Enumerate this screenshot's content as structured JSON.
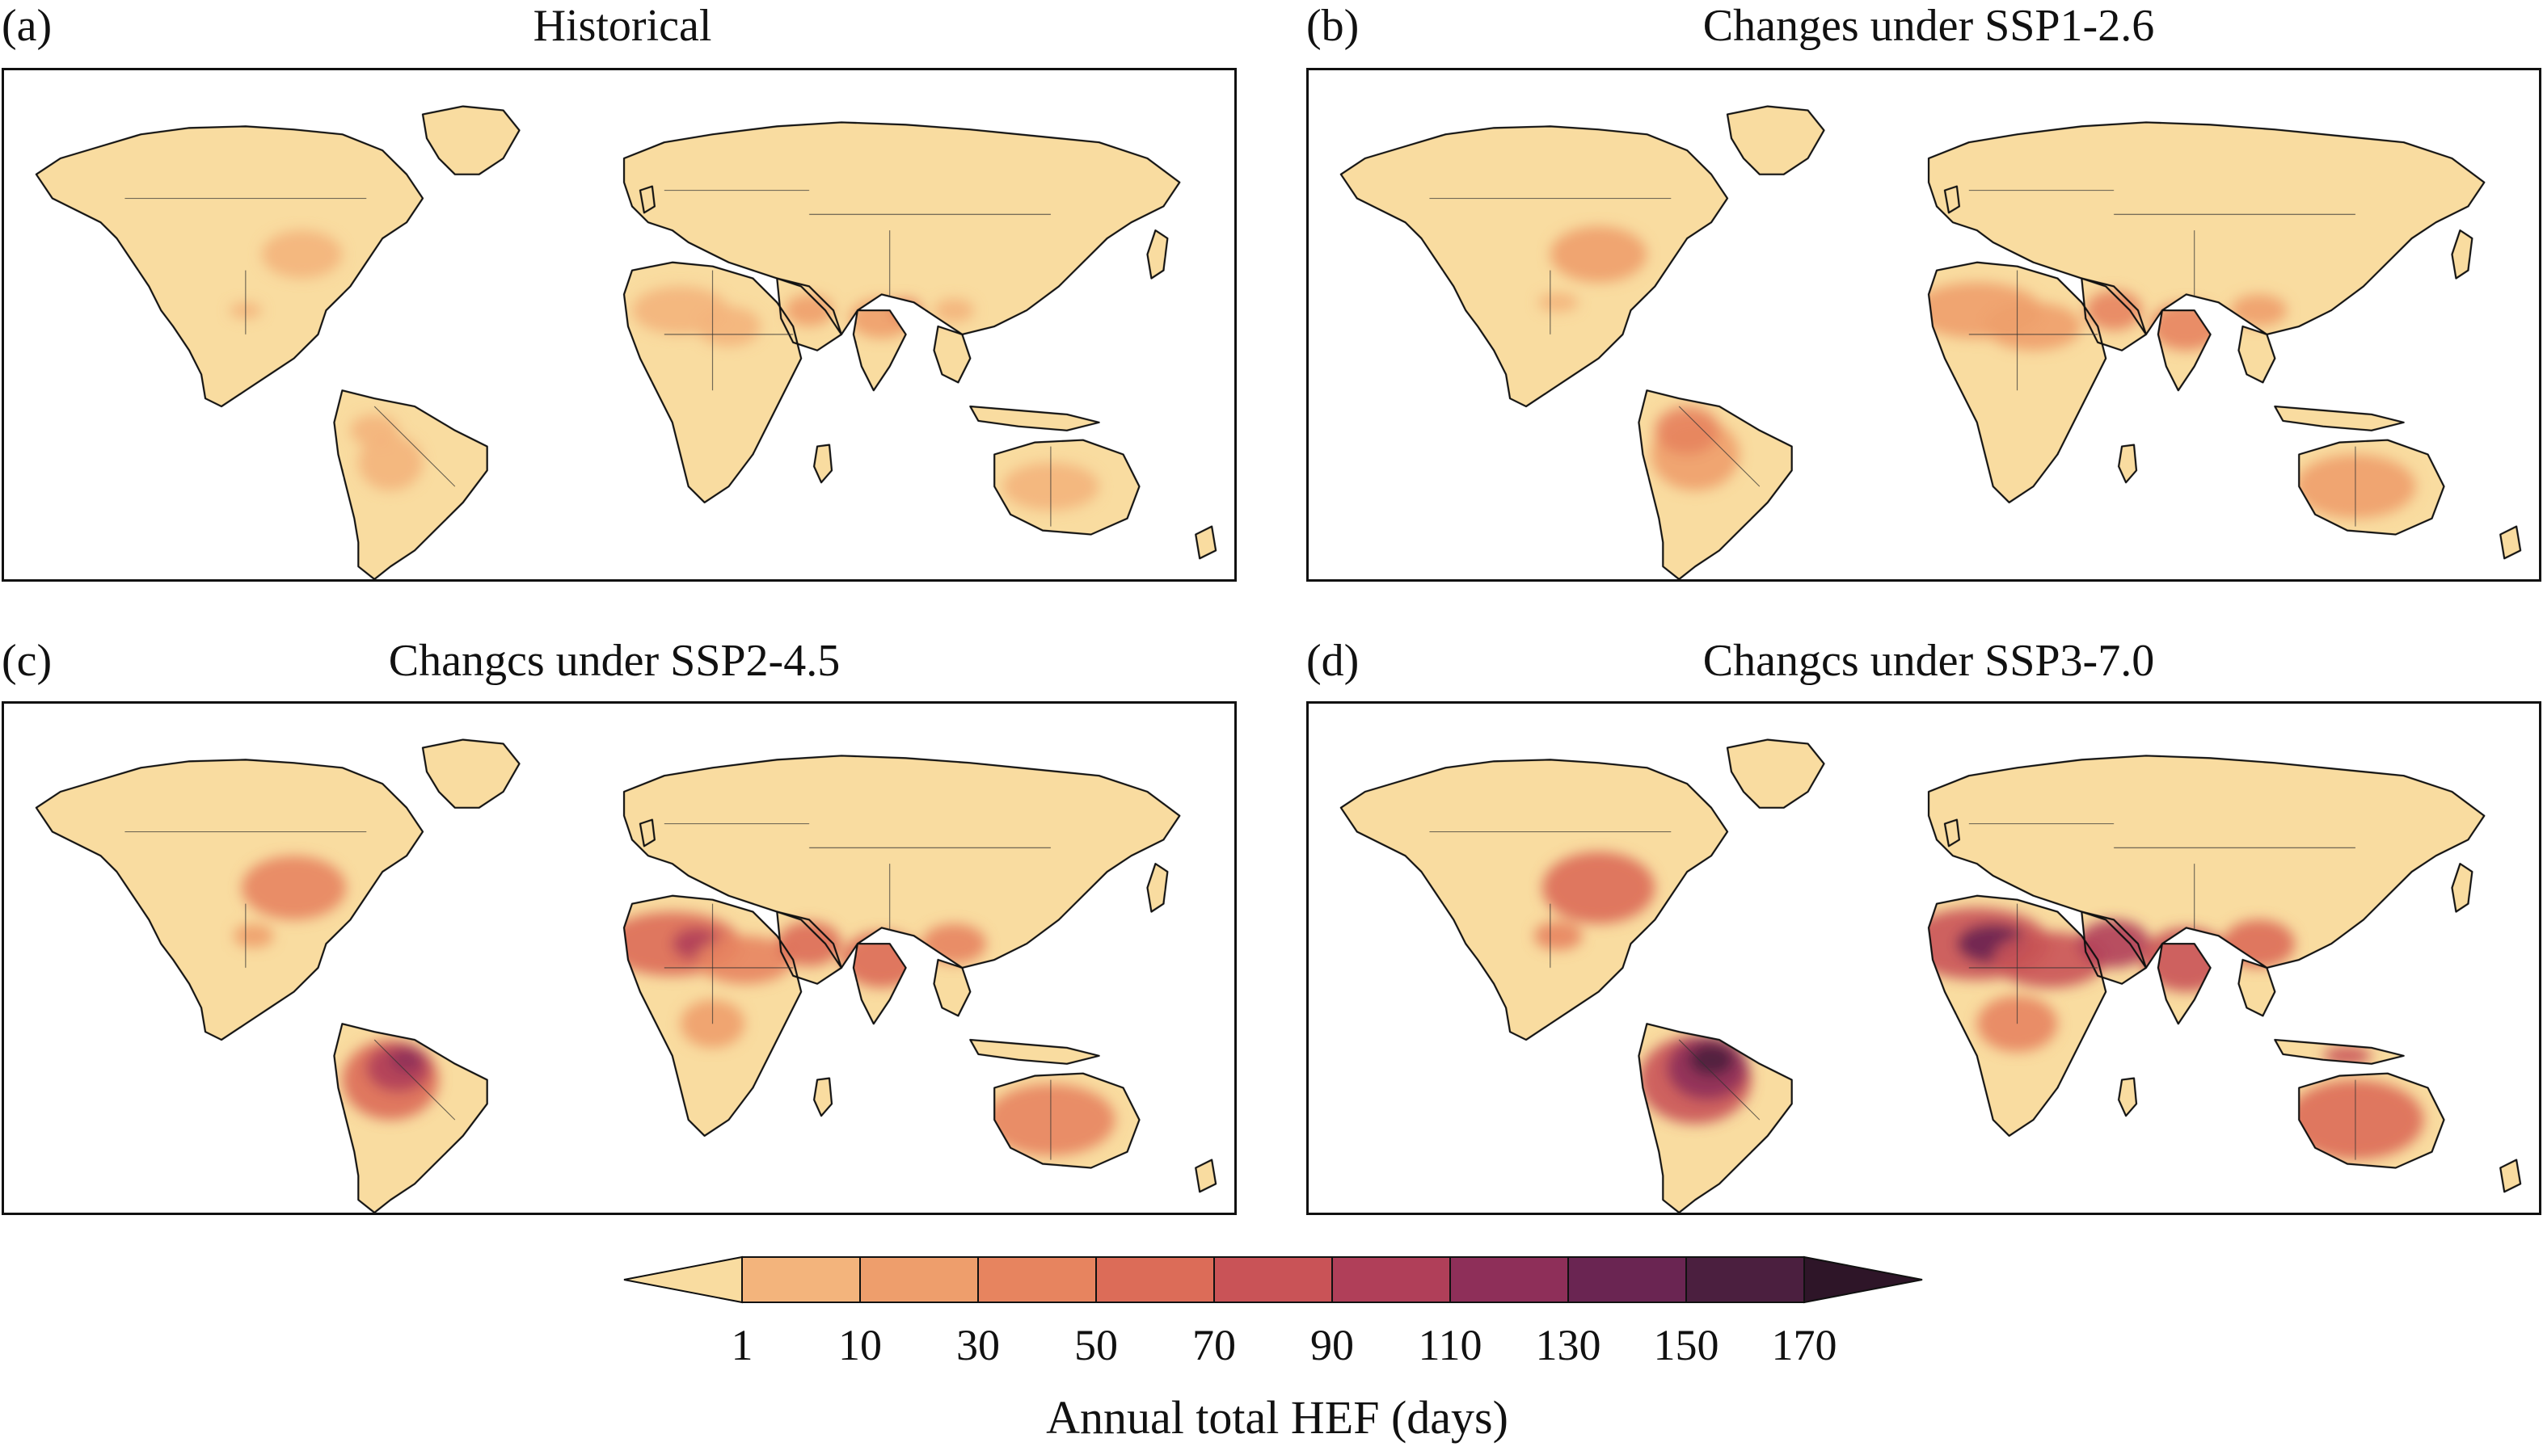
{
  "figure": {
    "panels": [
      {
        "letter": "(a)",
        "title": "Historical",
        "scenario": "historical"
      },
      {
        "letter": "(b)",
        "title": "Changes under SSP1-2.6",
        "scenario": "ssp126"
      },
      {
        "letter": "(c)",
        "title": "Changcs under SSP2-4.5",
        "scenario": "ssp245"
      },
      {
        "letter": "(d)",
        "title": "Changcs under SSP3-7.0",
        "scenario": "ssp370"
      }
    ],
    "colorbar": {
      "title": "Annual total HEF (days)",
      "ticks": [
        "1",
        "10",
        "30",
        "50",
        "70",
        "90",
        "110",
        "130",
        "150",
        "170"
      ],
      "colors": [
        "#f9dca0",
        "#f3b47c",
        "#ee9e6c",
        "#e7845f",
        "#dc6c58",
        "#c95357",
        "#b03f59",
        "#8e2f59",
        "#6a2552",
        "#4b1f3f",
        "#2e1528"
      ]
    },
    "colors": {
      "land_low": "#f9dca0",
      "ocean": "#ffffff",
      "coast": "#111111"
    }
  }
}
